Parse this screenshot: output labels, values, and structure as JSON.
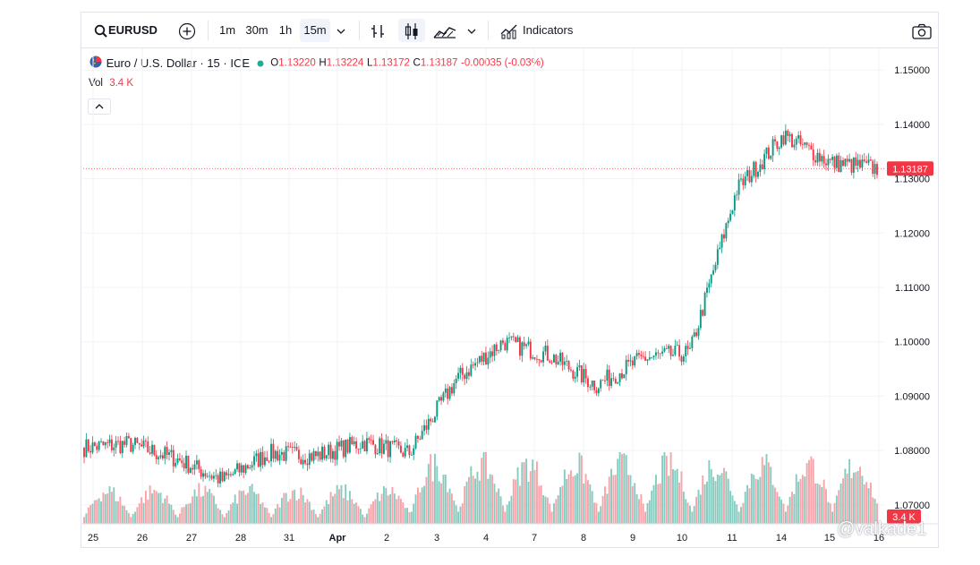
{
  "toolbar": {
    "symbol": "EURUSD",
    "intervals": [
      "1m",
      "30m",
      "1h",
      "15m"
    ],
    "active_interval": "15m",
    "indicators_label": "Indicators"
  },
  "legend": {
    "title": "Euro / U.S. Dollar · 15 · ICE",
    "o_label": "O",
    "o": "1.13220",
    "h_label": "H",
    "h": "1.13224",
    "l_label": "L",
    "l": "1.13172",
    "c_label": "C",
    "c": "1.13187",
    "change": "-0.00035 (-0.03%)",
    "vol_label": "Vol",
    "vol_value": "3.4 K"
  },
  "badges": {
    "last_price": "1.13187",
    "last_volume": "3.4 K"
  },
  "colors": {
    "up": "#089981",
    "down": "#f23645",
    "vol_up": "#86cbbf",
    "vol_down": "#f7a3a9",
    "grid": "#f2f3f6"
  },
  "watermark": "@valkade1",
  "chart_data": {
    "type": "candlestick",
    "symbol": "EURUSD",
    "interval": "15",
    "ylim": [
      1.0665,
      1.1535
    ],
    "y_ticks": [
      "1.15000",
      "1.14000",
      "1.13000",
      "1.12000",
      "1.11000",
      "1.10000",
      "1.09000",
      "1.08000",
      "1.07000"
    ],
    "x_tick_labels": [
      "25",
      "26",
      "27",
      "28",
      "31",
      "Apr",
      "2",
      "3",
      "4",
      "7",
      "8",
      "9",
      "10",
      "11",
      "14",
      "15",
      "16"
    ],
    "series": [
      {
        "name": "EURUSD",
        "x": [
          "Mar 25",
          "Mar 26",
          "Mar 27",
          "Mar 28",
          "Mar 31",
          "Apr 1",
          "Apr 2",
          "Apr 3",
          "Apr 4",
          "Apr 7",
          "Apr 8",
          "Apr 9",
          "Apr 10",
          "Apr 11",
          "Apr 14",
          "Apr 15",
          "Apr 16"
        ],
        "close": [
          1.0812,
          1.0785,
          1.0745,
          1.0795,
          1.079,
          1.0815,
          1.0795,
          1.093,
          1.1,
          1.0975,
          1.092,
          1.097,
          1.098,
          1.128,
          1.138,
          1.133,
          1.1319
        ]
      }
    ],
    "last": {
      "open": 1.1322,
      "high": 1.13224,
      "low": 1.13172,
      "close": 1.13187
    },
    "volume_last": "3.4 K"
  }
}
